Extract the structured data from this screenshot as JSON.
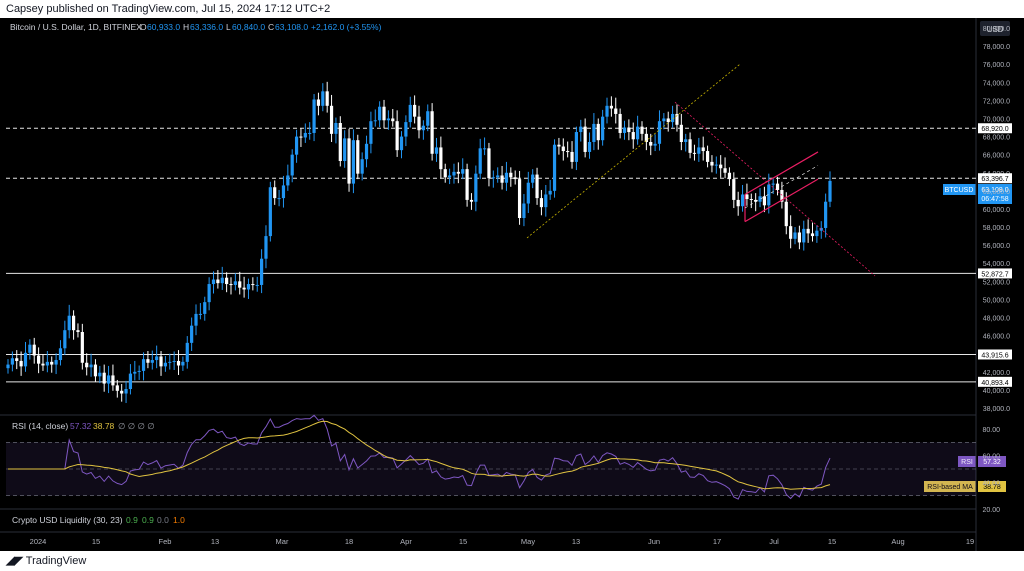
{
  "header": {
    "published_text": "Capsey published on TradingView.com, Jul 15, 2024 17:12 UTC+2"
  },
  "footer": {
    "brand": "TradingView"
  },
  "legend": {
    "symbol": "Bitcoin / U.S. Dollar, 1D, BITFINEX",
    "o_label": "O",
    "o_value": "60,933.0",
    "h_label": "H",
    "h_value": "63,336.0",
    "l_label": "L",
    "l_value": "60,840.0",
    "c_label": "C",
    "c_value": "63,108.0",
    "change": "+2,162.0 (+3.55%)"
  },
  "price_axis": {
    "currency": "USD",
    "ticks": [
      "80,000.0",
      "78,000.0",
      "76,000.0",
      "74,000.0",
      "72,000.0",
      "70,000.0",
      "68,000.0",
      "66,000.0",
      "64,000.0",
      "62,000.0",
      "60,000.0",
      "58,000.0",
      "56,000.0",
      "54,000.0",
      "52,000.0",
      "50,000.0",
      "48,000.0",
      "46,000.0",
      "44,000.0",
      "42,000.0",
      "40,000.0",
      "38,000.0"
    ],
    "tick_values": [
      80000,
      78000,
      76000,
      74000,
      72000,
      70000,
      68000,
      66000,
      64000,
      62000,
      60000,
      58000,
      56000,
      54000,
      52000,
      50000,
      48000,
      46000,
      44000,
      42000,
      40000,
      38000
    ],
    "last_price_symbol": "BTCUSD",
    "last_price": "63,108.0",
    "countdown": "06:47:58",
    "level_labels": [
      {
        "text": "68,920.0",
        "value": 68920
      },
      {
        "text": "63,396.7",
        "value": 63396.7
      },
      {
        "text": "52,872.7",
        "value": 52872.7
      },
      {
        "text": "43,915.6",
        "value": 43915.6
      },
      {
        "text": "40,893.4",
        "value": 40893.4
      }
    ]
  },
  "rsi_panel": {
    "title": "RSI (14, close)",
    "rsi_value": "57.32",
    "ma_value": "38.78",
    "extras": "∅ ∅ ∅ ∅",
    "ticks": [
      "80.00",
      "60.00",
      "40.00",
      "20.00"
    ],
    "tick_values": [
      80,
      60,
      40,
      20
    ],
    "badge_rsi_label": "RSI",
    "badge_rsi_value": "57.32",
    "badge_ma_label": "RSI-based MA",
    "badge_ma_value": "38.78",
    "colors": {
      "rsi": "#7e57c2",
      "ma": "#e0c341"
    }
  },
  "liquidity_panel": {
    "title": "Crypto USD Liquidity (30, 23)",
    "v1": "0.9",
    "v2": "0.9",
    "v3": "0.0",
    "v4": "1.0"
  },
  "time_axis": {
    "labels": [
      "2024",
      "15",
      "Feb",
      "13",
      "Mar",
      "18",
      "Apr",
      "15",
      "May",
      "13",
      "Jun",
      "17",
      "Jul",
      "15",
      "Aug",
      "19"
    ]
  },
  "colors": {
    "up": "#2196f3",
    "down": "#ffffff",
    "accent": "#2962ff",
    "level_line": "#ffffff",
    "channel": "#e91e63"
  },
  "chart_data": {
    "type": "candlestick",
    "title": "Bitcoin / U.S. Dollar, 1D, BITFINEX",
    "ylim": [
      37000,
      81000
    ],
    "horizontal_levels": [
      68920,
      63396.7,
      52872.7,
      43915.6,
      40893.4
    ],
    "closes": [
      42800,
      43500,
      43200,
      42600,
      44100,
      45000,
      43800,
      42900,
      42700,
      43100,
      42800,
      43300,
      44600,
      46600,
      48200,
      46600,
      46400,
      43000,
      42500,
      42800,
      41500,
      41900,
      40700,
      41600,
      40500,
      39900,
      39600,
      40100,
      41800,
      42000,
      42100,
      43400,
      43000,
      43300,
      43700,
      42600,
      43000,
      43100,
      43200,
      42700,
      43100,
      45200,
      47100,
      48400,
      48400,
      49700,
      51700,
      52200,
      51800,
      52400,
      51700,
      51600,
      52000,
      51300,
      51100,
      51700,
      51600,
      51600,
      54500,
      57000,
      62400,
      61200,
      61200,
      62600,
      63700,
      66000,
      68000,
      67900,
      68400,
      68400,
      72100,
      71400,
      73000,
      71400,
      68300,
      69500,
      65300,
      67800,
      62800,
      67600,
      63900,
      65500,
      67200,
      69700,
      69800,
      71300,
      69800,
      70000,
      69700,
      66500,
      68000,
      69600,
      71500,
      70200,
      68700,
      69200,
      70800,
      66100,
      66800,
      64400,
      63500,
      63700,
      64100,
      63900,
      64400,
      61000,
      60800,
      63900,
      66700,
      66700,
      63400,
      63500,
      63700,
      62900,
      64000,
      63500,
      63300,
      59000,
      60600,
      62900,
      63800,
      61200,
      60200,
      61600,
      62000,
      67100,
      66900,
      66400,
      66300,
      65200,
      68500,
      69100,
      66300,
      67400,
      69400,
      67600,
      70200,
      71400,
      71100,
      70500,
      68400,
      69000,
      68500,
      67700,
      69100,
      68300,
      67400,
      67000,
      67200,
      69700,
      70000,
      69600,
      70500,
      69300,
      67400,
      67700,
      66200,
      66100,
      66800,
      66400,
      65200,
      64800,
      64900,
      64500,
      64000,
      63300,
      61000,
      60300,
      61600,
      61100,
      61000,
      60800,
      61400,
      60400,
      62700,
      62800,
      62100,
      60800,
      58100,
      56700,
      57400,
      56300,
      57800,
      57300,
      57000,
      57600,
      57900,
      60800,
      63100
    ]
  }
}
